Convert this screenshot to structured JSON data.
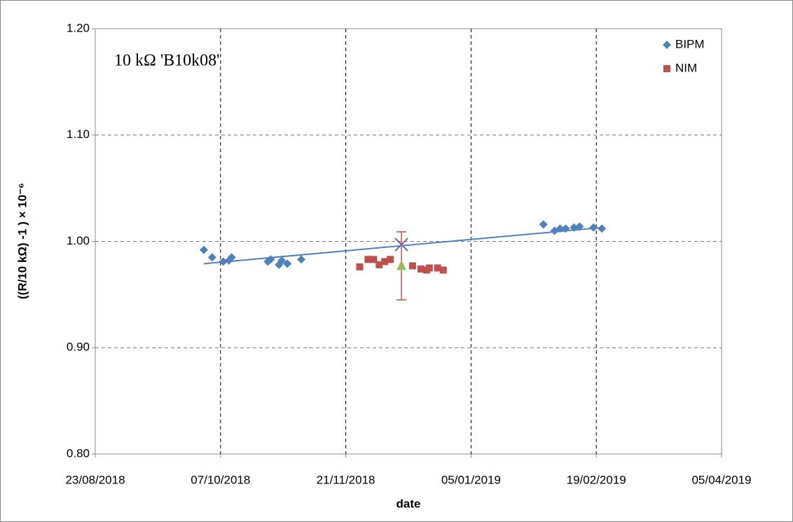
{
  "chart_data": {
    "type": "scatter",
    "annotation": "10 kΩ 'B10k08'",
    "xlabel": "date",
    "ylabel": "((R/10 kΩ) -1 ) × 10⁻⁶",
    "xlim": [
      "2018-08-23",
      "2019-04-05"
    ],
    "xticks": [
      {
        "value": "2018-08-23",
        "label": "23/08/2018"
      },
      {
        "value": "2018-10-07",
        "label": "07/10/2018"
      },
      {
        "value": "2018-11-21",
        "label": "21/11/2018"
      },
      {
        "value": "2019-01-05",
        "label": "05/01/2019"
      },
      {
        "value": "2019-02-19",
        "label": "19/02/2019"
      },
      {
        "value": "2019-04-05",
        "label": "05/04/2019"
      }
    ],
    "ylim": [
      0.8,
      1.2
    ],
    "yticks": [
      {
        "value": 0.8,
        "label": "0.80"
      },
      {
        "value": 0.9,
        "label": "0.90"
      },
      {
        "value": 1.0,
        "label": "1.00"
      },
      {
        "value": 1.1,
        "label": "1.10"
      },
      {
        "value": 1.2,
        "label": "1.20"
      }
    ],
    "grid": true,
    "legend": "top-right",
    "series": [
      {
        "name": "BIPM",
        "color": "#4f81bd",
        "marker": "diamond",
        "x": [
          "2018-10-01",
          "2018-10-04",
          "2018-10-08",
          "2018-10-10",
          "2018-10-11",
          "2018-10-24",
          "2018-10-25",
          "2018-10-28",
          "2018-10-29",
          "2018-10-31",
          "2018-11-05",
          "2019-01-31",
          "2019-02-04",
          "2019-02-06",
          "2019-02-08",
          "2019-02-11",
          "2019-02-13",
          "2019-02-18",
          "2019-02-21"
        ],
        "values": [
          0.992,
          0.985,
          0.981,
          0.982,
          0.985,
          0.981,
          0.983,
          0.978,
          0.982,
          0.979,
          0.983,
          1.016,
          1.01,
          1.012,
          1.012,
          1.013,
          1.014,
          1.013,
          1.012
        ]
      },
      {
        "name": "NIM",
        "color": "#c0504d",
        "marker": "square",
        "x": [
          "2018-11-26",
          "2018-11-29",
          "2018-12-01",
          "2018-12-03",
          "2018-12-05",
          "2018-12-07",
          "2018-12-15",
          "2018-12-18",
          "2018-12-20",
          "2018-12-21",
          "2018-12-24",
          "2018-12-26"
        ],
        "values": [
          0.976,
          0.983,
          0.983,
          0.978,
          0.981,
          0.983,
          0.977,
          0.974,
          0.973,
          0.975,
          0.975,
          0.973
        ]
      },
      {
        "color": "#7f5fa0",
        "marker": "x",
        "x": [
          "2018-12-11"
        ],
        "values": [
          0.997
        ]
      },
      {
        "color": "#9bbb59",
        "marker": "triangle",
        "errorcolor": "#c0504d",
        "x": [
          "2018-12-11"
        ],
        "values": [
          0.977
        ],
        "errors": [
          0.032
        ]
      },
      {
        "color": "#4f81bd",
        "marker": "line",
        "x": [
          "2018-10-01",
          "2019-02-21"
        ],
        "values": [
          0.979,
          1.013
        ]
      }
    ]
  }
}
